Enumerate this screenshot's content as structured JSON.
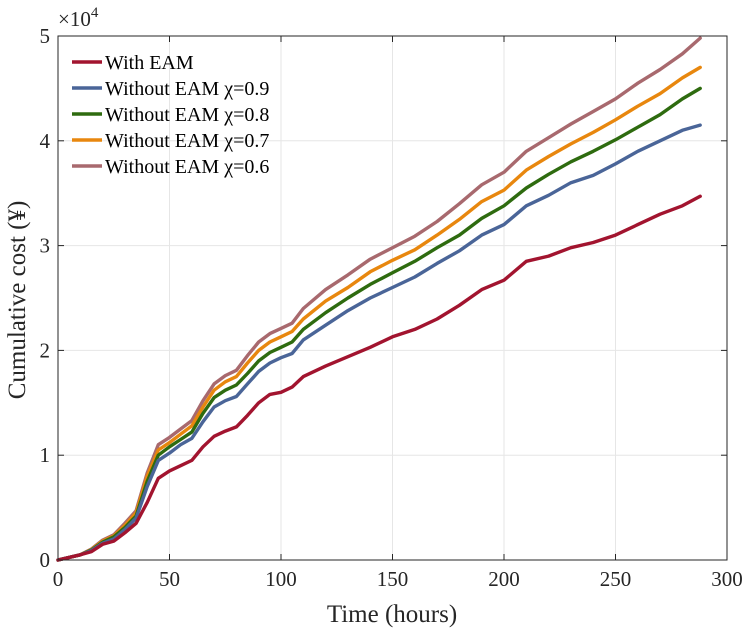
{
  "chart_data": {
    "type": "line",
    "title": "",
    "xlabel": "Time (hours)",
    "ylabel": "Cumulative cost (¥)",
    "xlim": [
      0,
      300
    ],
    "ylim": [
      0,
      50000
    ],
    "xticks": [
      "0",
      "50",
      "100",
      "150",
      "200",
      "250",
      "300"
    ],
    "yticks": [
      "0",
      "1",
      "2",
      "3",
      "4",
      "5"
    ],
    "y_exponent_base": "×10",
    "y_exponent_power": "4",
    "grid": true,
    "legend_position": "top-left",
    "series": [
      {
        "name": "With EAM",
        "color": "#A2142F",
        "x": [
          0,
          10,
          15,
          20,
          25,
          30,
          35,
          40,
          45,
          50,
          55,
          60,
          65,
          70,
          75,
          80,
          85,
          90,
          95,
          100,
          105,
          110,
          120,
          130,
          140,
          150,
          160,
          170,
          180,
          190,
          200,
          210,
          220,
          230,
          240,
          250,
          260,
          270,
          280,
          288
        ],
        "values": [
          0,
          500,
          800,
          1500,
          1800,
          2600,
          3500,
          5500,
          7800,
          8500,
          9000,
          9500,
          10800,
          11800,
          12300,
          12700,
          13800,
          15000,
          15800,
          16000,
          16500,
          17500,
          18500,
          19400,
          20300,
          21300,
          22000,
          23000,
          24300,
          25800,
          26700,
          28500,
          29000,
          29800,
          30300,
          31000,
          32000,
          33000,
          33800,
          34700
        ]
      },
      {
        "name": "Without EAM χ=0.9",
        "color": "#4A6598",
        "x": [
          0,
          10,
          15,
          20,
          25,
          30,
          35,
          40,
          45,
          50,
          55,
          60,
          65,
          70,
          75,
          80,
          85,
          90,
          95,
          100,
          105,
          110,
          120,
          130,
          140,
          150,
          160,
          170,
          180,
          190,
          200,
          210,
          220,
          230,
          240,
          250,
          260,
          270,
          280,
          288
        ],
        "values": [
          0,
          500,
          900,
          1600,
          2000,
          2900,
          4000,
          7000,
          9500,
          10200,
          11000,
          11600,
          13200,
          14600,
          15200,
          15600,
          16800,
          18000,
          18800,
          19300,
          19700,
          21000,
          22400,
          23800,
          25000,
          26000,
          27000,
          28300,
          29500,
          31000,
          32000,
          33800,
          34800,
          36000,
          36700,
          37800,
          39000,
          40000,
          41000,
          41500
        ]
      },
      {
        "name": "Without EAM χ=0.8",
        "color": "#2E6B0F",
        "x": [
          0,
          10,
          15,
          20,
          25,
          30,
          35,
          40,
          45,
          50,
          55,
          60,
          65,
          70,
          75,
          80,
          85,
          90,
          95,
          100,
          105,
          110,
          120,
          130,
          140,
          150,
          160,
          170,
          180,
          190,
          200,
          210,
          220,
          230,
          240,
          250,
          260,
          270,
          280,
          288
        ],
        "values": [
          0,
          500,
          950,
          1700,
          2200,
          3100,
          4200,
          7500,
          10000,
          10800,
          11500,
          12200,
          14000,
          15500,
          16200,
          16700,
          17800,
          19000,
          19800,
          20300,
          20800,
          22000,
          23600,
          25000,
          26300,
          27400,
          28500,
          29800,
          31000,
          32600,
          33800,
          35500,
          36800,
          38000,
          39000,
          40100,
          41300,
          42500,
          44000,
          45000
        ]
      },
      {
        "name": "Without EAM χ=0.7",
        "color": "#E8870E",
        "x": [
          0,
          10,
          15,
          20,
          25,
          30,
          35,
          40,
          45,
          50,
          55,
          60,
          65,
          70,
          75,
          80,
          85,
          90,
          95,
          100,
          105,
          110,
          120,
          130,
          140,
          150,
          160,
          170,
          180,
          190,
          200,
          210,
          220,
          230,
          240,
          250,
          260,
          270,
          280,
          288
        ],
        "values": [
          0,
          500,
          1000,
          1800,
          2300,
          3300,
          4500,
          8000,
          10500,
          11200,
          12000,
          12800,
          14600,
          16200,
          17000,
          17500,
          18800,
          20000,
          20800,
          21300,
          21800,
          23000,
          24700,
          26000,
          27500,
          28600,
          29600,
          31000,
          32500,
          34200,
          35300,
          37200,
          38500,
          39700,
          40800,
          42000,
          43300,
          44500,
          46000,
          47000
        ]
      },
      {
        "name": "Without EAM χ=0.6",
        "color": "#A8696E",
        "x": [
          0,
          10,
          15,
          20,
          25,
          30,
          35,
          40,
          45,
          50,
          55,
          60,
          65,
          70,
          75,
          80,
          85,
          90,
          95,
          100,
          105,
          110,
          120,
          130,
          140,
          150,
          160,
          170,
          180,
          190,
          200,
          210,
          220,
          230,
          240,
          250,
          260,
          270,
          280,
          288
        ],
        "values": [
          0,
          500,
          1050,
          1900,
          2400,
          3500,
          4700,
          8300,
          11000,
          11700,
          12500,
          13300,
          15200,
          16800,
          17600,
          18100,
          19500,
          20800,
          21600,
          22100,
          22600,
          24000,
          25800,
          27200,
          28700,
          29800,
          30900,
          32300,
          34000,
          35800,
          37000,
          39000,
          40300,
          41600,
          42800,
          44000,
          45500,
          46800,
          48300,
          49800
        ]
      }
    ]
  }
}
